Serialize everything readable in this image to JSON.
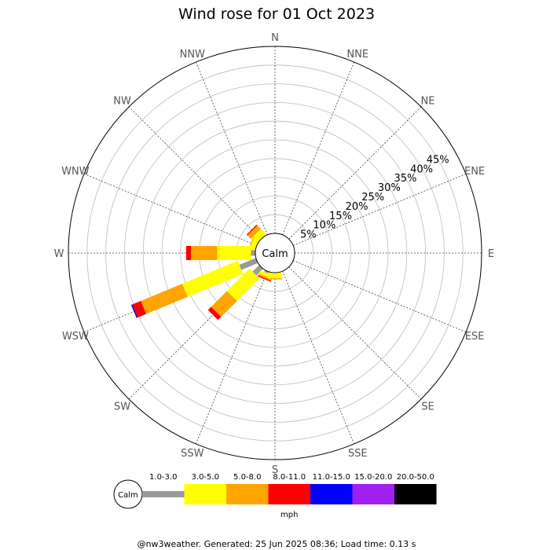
{
  "chart_data": {
    "type": "wind-rose",
    "title": "Wind rose for 01 Oct 2023",
    "directions": [
      "N",
      "NNE",
      "NE",
      "ENE",
      "E",
      "ESE",
      "SE",
      "SSE",
      "S",
      "SSW",
      "SW",
      "WSW",
      "W",
      "WNW",
      "NW",
      "NNW"
    ],
    "radial_ticks": [
      "5%",
      "10%",
      "15%",
      "20%",
      "25%",
      "30%",
      "35%",
      "40%",
      "45%"
    ],
    "radial_max_percent": 50,
    "calm_label": "Calm",
    "speed_bins": [
      {
        "label": "1.0-3.0",
        "color": "#999999"
      },
      {
        "label": "3.0-5.0",
        "color": "#ffff00"
      },
      {
        "label": "5.0-8.0",
        "color": "#ffa500"
      },
      {
        "label": "8.0-11.0",
        "color": "#ff0000"
      },
      {
        "label": "11.0-15.0",
        "color": "#0000ff"
      },
      {
        "label": "15.0-20.0",
        "color": "#a020f0"
      },
      {
        "label": "20.0-50.0",
        "color": "#000000"
      }
    ],
    "units": "mph",
    "series": [
      {
        "direction": "NW",
        "values": [
          0.0,
          2.0,
          1.3,
          0.3,
          0.0,
          0.0,
          0.0
        ]
      },
      {
        "direction": "WNW",
        "values": [
          0.0,
          1.5,
          0.2,
          0.0,
          0.0,
          0.0,
          0.0
        ]
      },
      {
        "direction": "W",
        "values": [
          1.2,
          9.0,
          7.0,
          1.3,
          0.0,
          0.0,
          0.0
        ]
      },
      {
        "direction": "WSW",
        "values": [
          4.8,
          16.0,
          12.0,
          2.5,
          0.3,
          0.0,
          0.0
        ]
      },
      {
        "direction": "SW",
        "values": [
          2.5,
          8.5,
          6.0,
          1.2,
          0.0,
          0.0,
          0.0
        ]
      },
      {
        "direction": "SSW",
        "values": [
          0.5,
          1.0,
          0.5,
          0.3,
          0.0,
          0.0,
          0.0
        ]
      },
      {
        "direction": "S",
        "values": [
          0.0,
          1.5,
          0.3,
          0.0,
          0.0,
          0.0,
          0.0
        ]
      }
    ]
  },
  "footer": "@nw3weather. Generated: 25 Jun 2025 08:36; Load time: 0.13 s"
}
